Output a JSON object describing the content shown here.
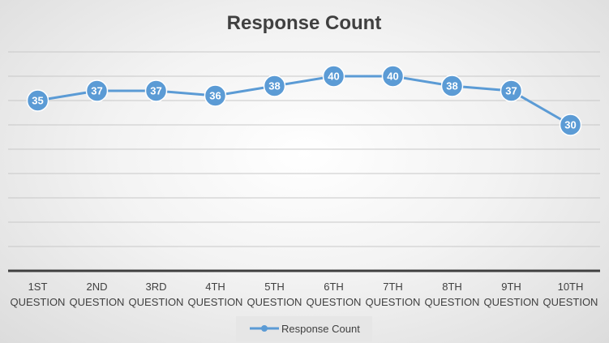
{
  "chart_data": {
    "type": "line",
    "title": "Response Count",
    "categories": [
      [
        "1ST",
        "QUESTION"
      ],
      [
        "2ND",
        "QUESTION"
      ],
      [
        "3RD",
        "QUESTION"
      ],
      [
        "4TH",
        "QUESTION"
      ],
      [
        "5TH",
        "QUESTION"
      ],
      [
        "6TH",
        "QUESTION"
      ],
      [
        "7TH",
        "QUESTION"
      ],
      [
        "8TH",
        "QUESTION"
      ],
      [
        "9TH",
        "QUESTION"
      ],
      [
        "10TH",
        "QUESTION"
      ]
    ],
    "series": [
      {
        "name": "Response Count",
        "values": [
          35,
          37,
          37,
          36,
          38,
          40,
          40,
          38,
          37,
          30
        ],
        "color": "#5b9bd5"
      }
    ],
    "ylim": [
      0,
      45
    ],
    "grid": true,
    "legend": "bottom",
    "data_labels": true
  }
}
